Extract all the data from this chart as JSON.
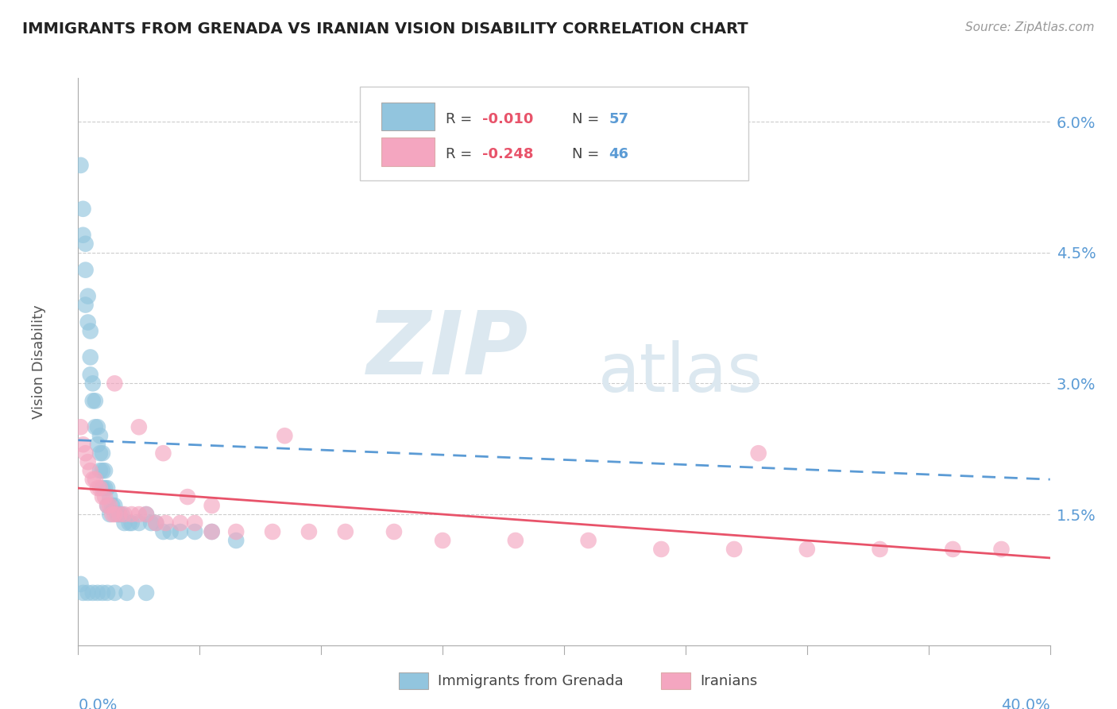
{
  "title": "IMMIGRANTS FROM GRENADA VS IRANIAN VISION DISABILITY CORRELATION CHART",
  "source": "Source: ZipAtlas.com",
  "ylabel": "Vision Disability",
  "right_yticks": [
    0.0,
    0.015,
    0.03,
    0.045,
    0.06
  ],
  "right_yticklabels": [
    "",
    "1.5%",
    "3.0%",
    "4.5%",
    "6.0%"
  ],
  "xlim": [
    0.0,
    0.4
  ],
  "ylim": [
    0.0,
    0.065
  ],
  "color_blue": "#92C5DE",
  "color_pink": "#F4A6C0",
  "color_blue_line": "#5B9BD5",
  "color_pink_line": "#E8536A",
  "watermark_zip": "ZIP",
  "watermark_atlas": "atlas",
  "background_color": "#ffffff",
  "grenada_x": [
    0.001,
    0.002,
    0.002,
    0.003,
    0.003,
    0.003,
    0.004,
    0.004,
    0.005,
    0.005,
    0.005,
    0.006,
    0.006,
    0.007,
    0.007,
    0.008,
    0.008,
    0.009,
    0.009,
    0.009,
    0.01,
    0.01,
    0.01,
    0.011,
    0.011,
    0.012,
    0.012,
    0.013,
    0.013,
    0.014,
    0.015,
    0.016,
    0.017,
    0.018,
    0.019,
    0.021,
    0.022,
    0.025,
    0.028,
    0.03,
    0.032,
    0.035,
    0.038,
    0.042,
    0.048,
    0.055,
    0.065,
    0.001,
    0.002,
    0.004,
    0.006,
    0.008,
    0.01,
    0.012,
    0.015,
    0.02,
    0.028
  ],
  "grenada_y": [
    0.055,
    0.05,
    0.047,
    0.046,
    0.043,
    0.039,
    0.04,
    0.037,
    0.036,
    0.033,
    0.031,
    0.03,
    0.028,
    0.028,
    0.025,
    0.025,
    0.023,
    0.024,
    0.022,
    0.02,
    0.022,
    0.02,
    0.018,
    0.02,
    0.018,
    0.018,
    0.016,
    0.017,
    0.015,
    0.016,
    0.016,
    0.015,
    0.015,
    0.015,
    0.014,
    0.014,
    0.014,
    0.014,
    0.015,
    0.014,
    0.014,
    0.013,
    0.013,
    0.013,
    0.013,
    0.013,
    0.012,
    0.007,
    0.006,
    0.006,
    0.006,
    0.006,
    0.006,
    0.006,
    0.006,
    0.006,
    0.006
  ],
  "iranian_x": [
    0.001,
    0.002,
    0.003,
    0.004,
    0.005,
    0.006,
    0.007,
    0.008,
    0.009,
    0.01,
    0.011,
    0.012,
    0.013,
    0.014,
    0.015,
    0.017,
    0.019,
    0.022,
    0.025,
    0.028,
    0.032,
    0.036,
    0.042,
    0.048,
    0.055,
    0.065,
    0.08,
    0.095,
    0.11,
    0.13,
    0.15,
    0.18,
    0.21,
    0.24,
    0.27,
    0.3,
    0.33,
    0.36,
    0.38,
    0.015,
    0.025,
    0.035,
    0.045,
    0.055,
    0.085,
    0.28
  ],
  "iranian_y": [
    0.025,
    0.023,
    0.022,
    0.021,
    0.02,
    0.019,
    0.019,
    0.018,
    0.018,
    0.017,
    0.017,
    0.016,
    0.016,
    0.015,
    0.015,
    0.015,
    0.015,
    0.015,
    0.015,
    0.015,
    0.014,
    0.014,
    0.014,
    0.014,
    0.013,
    0.013,
    0.013,
    0.013,
    0.013,
    0.013,
    0.012,
    0.012,
    0.012,
    0.011,
    0.011,
    0.011,
    0.011,
    0.011,
    0.011,
    0.03,
    0.025,
    0.022,
    0.017,
    0.016,
    0.024,
    0.022
  ]
}
